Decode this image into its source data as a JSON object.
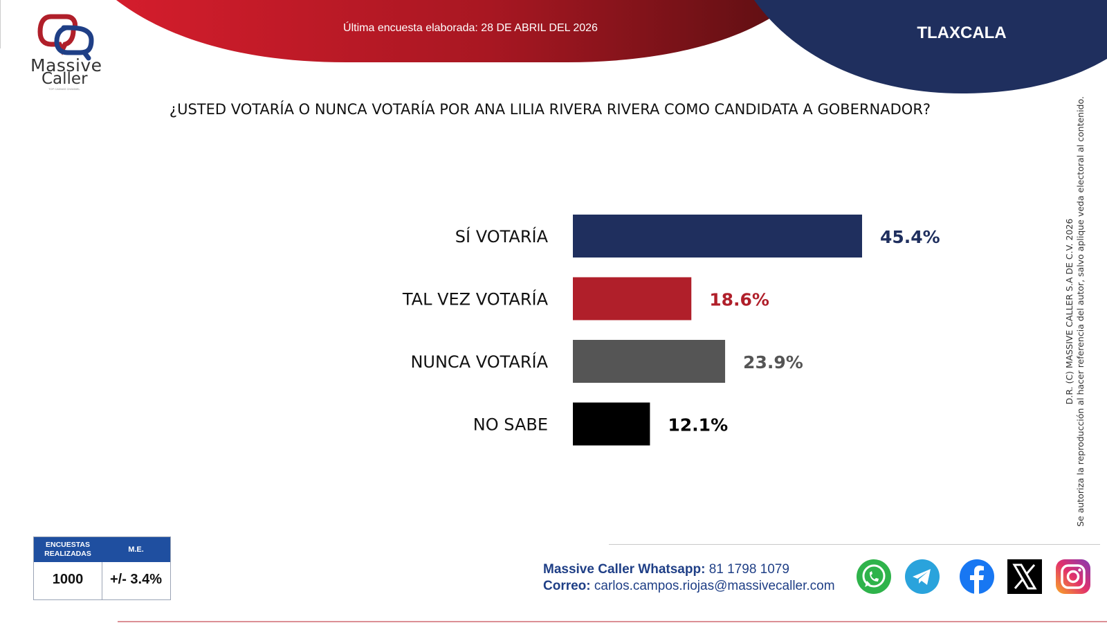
{
  "header": {
    "brand_line1": "Massive",
    "brand_line2": "Caller",
    "brand_tagline": "TOP CANVAS CHANNEL",
    "survey_date": "Última encuesta elaborada: 28 DE ABRIL DEL 2026",
    "region": "TLAXCALA"
  },
  "question": "¿USTED VOTARÍA O NUNCA VOTARÍA POR ANA LILIA RIVERA RIVERA COMO CANDIDATA A GOBERNADOR?",
  "chart_data": {
    "type": "bar",
    "orientation": "horizontal",
    "title": "¿USTED VOTARÍA O NUNCA VOTARÍA POR ANA LILIA RIVERA RIVERA COMO CANDIDATA A GOBERNADOR?",
    "categories": [
      "SÍ VOTARÍA",
      "TAL VEZ VOTARÍA",
      "NUNCA VOTARÍA",
      "NO SABE"
    ],
    "values": [
      45.4,
      18.6,
      23.9,
      12.1
    ],
    "value_labels": [
      "45.4%",
      "18.6%",
      "23.9%",
      "12.1%"
    ],
    "colors": [
      "#1f2f5e",
      "#b01f2a",
      "#555555",
      "#000000"
    ],
    "label_colors": [
      "#1f2f5e",
      "#b01f2a",
      "#555555",
      "#000000"
    ],
    "xlim": [
      0,
      45.4
    ],
    "grid": false,
    "legend": "none"
  },
  "copyright": {
    "line1": "D.R. (C) MASSIVE CALLER S.A DE C.V. 2026",
    "line2": "Se autoriza la reproducción al hacer referencia del autor, salvo aplique veda electoral al contenido."
  },
  "stats": {
    "surveys_label": "ENCUESTAS REALIZADAS",
    "surveys_value": "1000",
    "margin_label": "M.E.",
    "margin_value": "+/- 3.4%"
  },
  "contact": {
    "whatsapp_label": "Massive Caller Whatsapp:",
    "whatsapp_value": "81 1798 1079",
    "email_label": "Correo:",
    "email_value": "carlos.campos.riojas@massivecaller.com"
  },
  "social_icons": [
    "whatsapp-icon",
    "telegram-icon",
    "facebook-icon",
    "x-icon",
    "instagram-icon"
  ],
  "colors": {
    "navy": "#1f2f5e",
    "red": "#b01f2a",
    "gray": "#555555",
    "black": "#000000",
    "stats_header": "#1f4fa0"
  }
}
